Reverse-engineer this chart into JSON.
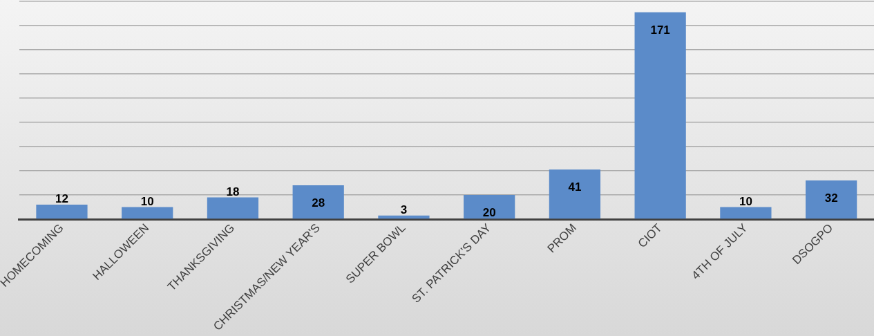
{
  "chart_data": {
    "type": "bar",
    "categories": [
      "HOMECOMING",
      "HALLOWEEN",
      "THANKSGIVING",
      "CHRISTMAS/NEW YEAR'S",
      "SUPER BOWL",
      "ST. PATRICK'S DAY",
      "PROM",
      "CIOT",
      "4TH OF JULY",
      "DSOGPO"
    ],
    "values": [
      12,
      10,
      18,
      28,
      3,
      20,
      41,
      171,
      10,
      32
    ],
    "color": "#5b8bc9",
    "grid": "y",
    "tick_labels": "x",
    "data_labels": true,
    "legend": false
  }
}
